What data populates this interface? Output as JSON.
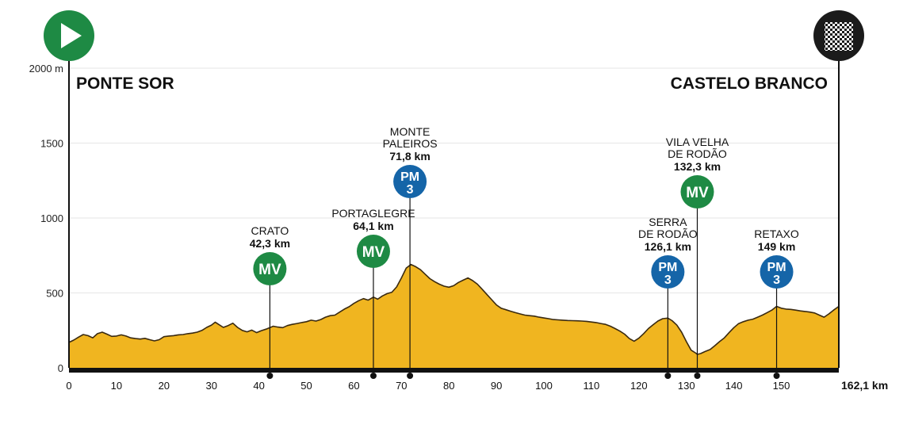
{
  "chart_data": {
    "type": "area",
    "title": "",
    "start": "PONTE SOR",
    "finish": "CASTELO BRANCO",
    "unit_y": "m",
    "total_km_label": "162,1 km",
    "xlim": [
      0,
      162.1
    ],
    "ylim": [
      0,
      2000
    ],
    "xticks": [
      0,
      10,
      20,
      30,
      40,
      50,
      60,
      70,
      80,
      90,
      100,
      110,
      120,
      130,
      140,
      150
    ],
    "yticks": [
      {
        "value": 0,
        "label": "0"
      },
      {
        "value": 500,
        "label": "500"
      },
      {
        "value": 1000,
        "label": "1000"
      },
      {
        "value": 1500,
        "label": "1500"
      },
      {
        "value": 2000,
        "label": "2000 m"
      }
    ],
    "grid": true,
    "colors": {
      "profile_fill": "#f0b520",
      "profile_line": "#3a2a10",
      "mv_badge": "#1e8a44",
      "pm_badge": "#1565a8",
      "start_icon": "#1e8a44",
      "finish_icon": "#1b1b1b",
      "axis": "#111111",
      "grid": "#e6e6e6"
    },
    "profile": [
      [
        0,
        170
      ],
      [
        1,
        185
      ],
      [
        2,
        205
      ],
      [
        3,
        222
      ],
      [
        4,
        215
      ],
      [
        5,
        200
      ],
      [
        6,
        228
      ],
      [
        7,
        238
      ],
      [
        8,
        225
      ],
      [
        9,
        210
      ],
      [
        10,
        212
      ],
      [
        11,
        220
      ],
      [
        12,
        212
      ],
      [
        13,
        200
      ],
      [
        14,
        195
      ],
      [
        15,
        192
      ],
      [
        16,
        197
      ],
      [
        17,
        188
      ],
      [
        18,
        180
      ],
      [
        19,
        188
      ],
      [
        20,
        208
      ],
      [
        21,
        212
      ],
      [
        22,
        215
      ],
      [
        23,
        220
      ],
      [
        24,
        222
      ],
      [
        25,
        228
      ],
      [
        26,
        232
      ],
      [
        27,
        238
      ],
      [
        28,
        250
      ],
      [
        29,
        270
      ],
      [
        30,
        285
      ],
      [
        30.8,
        305
      ],
      [
        31.5,
        290
      ],
      [
        32.5,
        270
      ],
      [
        33.5,
        282
      ],
      [
        34.5,
        298
      ],
      [
        35.5,
        270
      ],
      [
        36.5,
        250
      ],
      [
        37.5,
        240
      ],
      [
        38.5,
        252
      ],
      [
        39.5,
        235
      ],
      [
        40.5,
        248
      ],
      [
        41.5,
        258
      ],
      [
        42.3,
        268
      ],
      [
        43,
        278
      ],
      [
        44,
        272
      ],
      [
        45,
        268
      ],
      [
        46,
        282
      ],
      [
        47,
        290
      ],
      [
        48,
        296
      ],
      [
        49,
        302
      ],
      [
        50,
        308
      ],
      [
        51,
        318
      ],
      [
        52,
        312
      ],
      [
        53,
        322
      ],
      [
        54,
        338
      ],
      [
        55,
        348
      ],
      [
        56,
        352
      ],
      [
        57,
        372
      ],
      [
        58,
        392
      ],
      [
        59,
        408
      ],
      [
        60,
        430
      ],
      [
        61,
        448
      ],
      [
        62,
        462
      ],
      [
        63,
        452
      ],
      [
        64.1,
        472
      ],
      [
        65,
        458
      ],
      [
        66,
        480
      ],
      [
        67,
        495
      ],
      [
        68,
        505
      ],
      [
        69,
        540
      ],
      [
        70,
        600
      ],
      [
        71,
        665
      ],
      [
        72,
        690
      ],
      [
        73,
        675
      ],
      [
        74,
        655
      ],
      [
        75,
        625
      ],
      [
        76,
        595
      ],
      [
        77,
        575
      ],
      [
        78,
        558
      ],
      [
        79,
        545
      ],
      [
        80,
        538
      ],
      [
        81,
        548
      ],
      [
        82,
        570
      ],
      [
        83,
        585
      ],
      [
        84,
        600
      ],
      [
        85,
        582
      ],
      [
        86,
        558
      ],
      [
        87,
        525
      ],
      [
        88,
        490
      ],
      [
        89,
        455
      ],
      [
        90,
        420
      ],
      [
        91,
        398
      ],
      [
        92,
        388
      ],
      [
        93,
        378
      ],
      [
        94,
        368
      ],
      [
        95,
        360
      ],
      [
        96,
        352
      ],
      [
        97,
        348
      ],
      [
        98,
        345
      ],
      [
        99,
        338
      ],
      [
        100,
        333
      ],
      [
        101,
        328
      ],
      [
        102,
        322
      ],
      [
        103,
        320
      ],
      [
        104,
        318
      ],
      [
        105,
        316
      ],
      [
        106,
        315
      ],
      [
        107,
        314
      ],
      [
        108,
        312
      ],
      [
        109,
        310
      ],
      [
        110,
        306
      ],
      [
        111,
        302
      ],
      [
        112,
        296
      ],
      [
        113,
        290
      ],
      [
        114,
        278
      ],
      [
        115,
        262
      ],
      [
        116,
        245
      ],
      [
        117,
        225
      ],
      [
        118,
        195
      ],
      [
        119,
        178
      ],
      [
        120,
        198
      ],
      [
        121,
        228
      ],
      [
        122,
        262
      ],
      [
        123,
        288
      ],
      [
        124,
        312
      ],
      [
        125,
        328
      ],
      [
        126.1,
        332
      ],
      [
        127,
        315
      ],
      [
        128,
        285
      ],
      [
        129,
        238
      ],
      [
        130,
        175
      ],
      [
        131,
        118
      ],
      [
        132,
        98
      ],
      [
        132.3,
        90
      ],
      [
        133,
        95
      ],
      [
        134,
        110
      ],
      [
        135,
        122
      ],
      [
        136,
        148
      ],
      [
        137,
        175
      ],
      [
        138,
        200
      ],
      [
        139,
        235
      ],
      [
        140,
        268
      ],
      [
        141,
        295
      ],
      [
        142,
        308
      ],
      [
        143,
        318
      ],
      [
        144,
        325
      ],
      [
        145,
        338
      ],
      [
        146,
        352
      ],
      [
        147,
        368
      ],
      [
        148,
        385
      ],
      [
        149,
        410
      ],
      [
        150,
        398
      ],
      [
        151,
        392
      ],
      [
        152,
        390
      ],
      [
        153,
        385
      ],
      [
        154,
        380
      ],
      [
        155,
        376
      ],
      [
        156,
        372
      ],
      [
        157,
        366
      ],
      [
        158,
        352
      ],
      [
        159,
        338
      ],
      [
        160,
        360
      ],
      [
        161,
        385
      ],
      [
        162.1,
        410
      ]
    ],
    "checkpoints": [
      {
        "name": "CRATO",
        "km": 42.3,
        "km_label": "42,3 km",
        "type": "MV",
        "badge": "MV",
        "level": ""
      },
      {
        "name": "PORTAGLEGRE",
        "km": 64.1,
        "km_label": "64,1 km",
        "type": "MV",
        "badge": "MV",
        "level": ""
      },
      {
        "name": "MONTE PALEIROS",
        "name_lines": [
          "MONTE",
          "PALEIROS"
        ],
        "km": 71.8,
        "km_label": "71,8 km",
        "type": "PM",
        "badge": "PM",
        "level": "3"
      },
      {
        "name": "SERRA DE RODÃO",
        "name_lines": [
          "SERRA",
          "DE RODÃO"
        ],
        "km": 126.1,
        "km_label": "126,1 km",
        "type": "PM",
        "badge": "PM",
        "level": "3"
      },
      {
        "name": "VILA VELHA DE RODÃO",
        "name_lines": [
          "VILA VELHA",
          "DE RODÃO"
        ],
        "km": 132.3,
        "km_label": "132,3 km",
        "type": "MV",
        "badge": "MV",
        "level": ""
      },
      {
        "name": "RETAXO",
        "km": 149,
        "km_label": "149 km",
        "type": "PM",
        "badge": "PM",
        "level": "3"
      }
    ],
    "icons": {
      "start": "play-icon",
      "finish": "checkered-flag-icon"
    }
  }
}
